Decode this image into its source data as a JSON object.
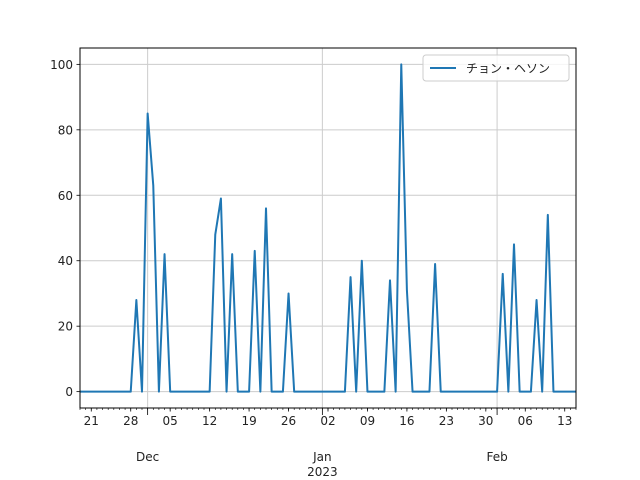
{
  "chart_data": {
    "type": "line",
    "title": "",
    "xlabel": "",
    "ylabel": "",
    "ylim": [
      -5,
      105
    ],
    "xlim": [
      "2022-11-19",
      "2023-02-15"
    ],
    "grid": true,
    "legend_position": "top-right",
    "yticks": [
      0,
      20,
      40,
      60,
      80,
      100
    ],
    "xtick_labels": [
      {
        "date": "2022-11-21",
        "label": "21"
      },
      {
        "date": "2022-11-28",
        "label": "28"
      },
      {
        "date": "2022-12-05",
        "label": "05"
      },
      {
        "date": "2022-12-12",
        "label": "12"
      },
      {
        "date": "2022-12-19",
        "label": "19"
      },
      {
        "date": "2022-12-26",
        "label": "26"
      },
      {
        "date": "2023-01-02",
        "label": "02"
      },
      {
        "date": "2023-01-09",
        "label": "09"
      },
      {
        "date": "2023-01-16",
        "label": "16"
      },
      {
        "date": "2023-01-23",
        "label": "23"
      },
      {
        "date": "2023-01-30",
        "label": "30"
      },
      {
        "date": "2023-02-06",
        "label": "06"
      },
      {
        "date": "2023-02-13",
        "label": "13"
      }
    ],
    "month_labels": [
      {
        "date": "2022-12-01",
        "label": "Dec",
        "sub": ""
      },
      {
        "date": "2023-01-01",
        "label": "Jan",
        "sub": "2023"
      },
      {
        "date": "2023-02-01",
        "label": "Feb",
        "sub": ""
      }
    ],
    "series": [
      {
        "name": "チョン・ヘソン",
        "color": "#1f77b4",
        "x": [
          "2022-11-19",
          "2022-11-20",
          "2022-11-21",
          "2022-11-22",
          "2022-11-23",
          "2022-11-24",
          "2022-11-25",
          "2022-11-26",
          "2022-11-27",
          "2022-11-28",
          "2022-11-29",
          "2022-11-30",
          "2022-12-01",
          "2022-12-02",
          "2022-12-03",
          "2022-12-04",
          "2022-12-05",
          "2022-12-06",
          "2022-12-07",
          "2022-12-08",
          "2022-12-09",
          "2022-12-10",
          "2022-12-11",
          "2022-12-12",
          "2022-12-13",
          "2022-12-14",
          "2022-12-15",
          "2022-12-16",
          "2022-12-17",
          "2022-12-18",
          "2022-12-19",
          "2022-12-20",
          "2022-12-21",
          "2022-12-22",
          "2022-12-23",
          "2022-12-24",
          "2022-12-25",
          "2022-12-26",
          "2022-12-27",
          "2022-12-28",
          "2022-12-29",
          "2022-12-30",
          "2022-12-31",
          "2023-01-01",
          "2023-01-02",
          "2023-01-03",
          "2023-01-04",
          "2023-01-05",
          "2023-01-06",
          "2023-01-07",
          "2023-01-08",
          "2023-01-09",
          "2023-01-10",
          "2023-01-11",
          "2023-01-12",
          "2023-01-13",
          "2023-01-14",
          "2023-01-15",
          "2023-01-16",
          "2023-01-17",
          "2023-01-18",
          "2023-01-19",
          "2023-01-20",
          "2023-01-21",
          "2023-01-22",
          "2023-01-23",
          "2023-01-24",
          "2023-01-25",
          "2023-01-26",
          "2023-01-27",
          "2023-01-28",
          "2023-01-29",
          "2023-01-30",
          "2023-01-31",
          "2023-02-01",
          "2023-02-02",
          "2023-02-03",
          "2023-02-04",
          "2023-02-05",
          "2023-02-06",
          "2023-02-07",
          "2023-02-08",
          "2023-02-09",
          "2023-02-10",
          "2023-02-11",
          "2023-02-12",
          "2023-02-13",
          "2023-02-14",
          "2023-02-15"
        ],
        "y": [
          0,
          0,
          0,
          0,
          0,
          0,
          0,
          0,
          0,
          0,
          28,
          0,
          85,
          63,
          0,
          42,
          0,
          0,
          0,
          0,
          0,
          0,
          0,
          0,
          48,
          59,
          0,
          42,
          0,
          0,
          0,
          43,
          0,
          56,
          0,
          0,
          0,
          30,
          0,
          0,
          0,
          0,
          0,
          0,
          0,
          0,
          0,
          0,
          35,
          0,
          40,
          0,
          0,
          0,
          0,
          34,
          0,
          100,
          31,
          0,
          0,
          0,
          0,
          39,
          0,
          0,
          0,
          0,
          0,
          0,
          0,
          0,
          0,
          0,
          0,
          36,
          0,
          45,
          0,
          0,
          0,
          28,
          0,
          54,
          0,
          0,
          0,
          0,
          0
        ]
      }
    ]
  }
}
